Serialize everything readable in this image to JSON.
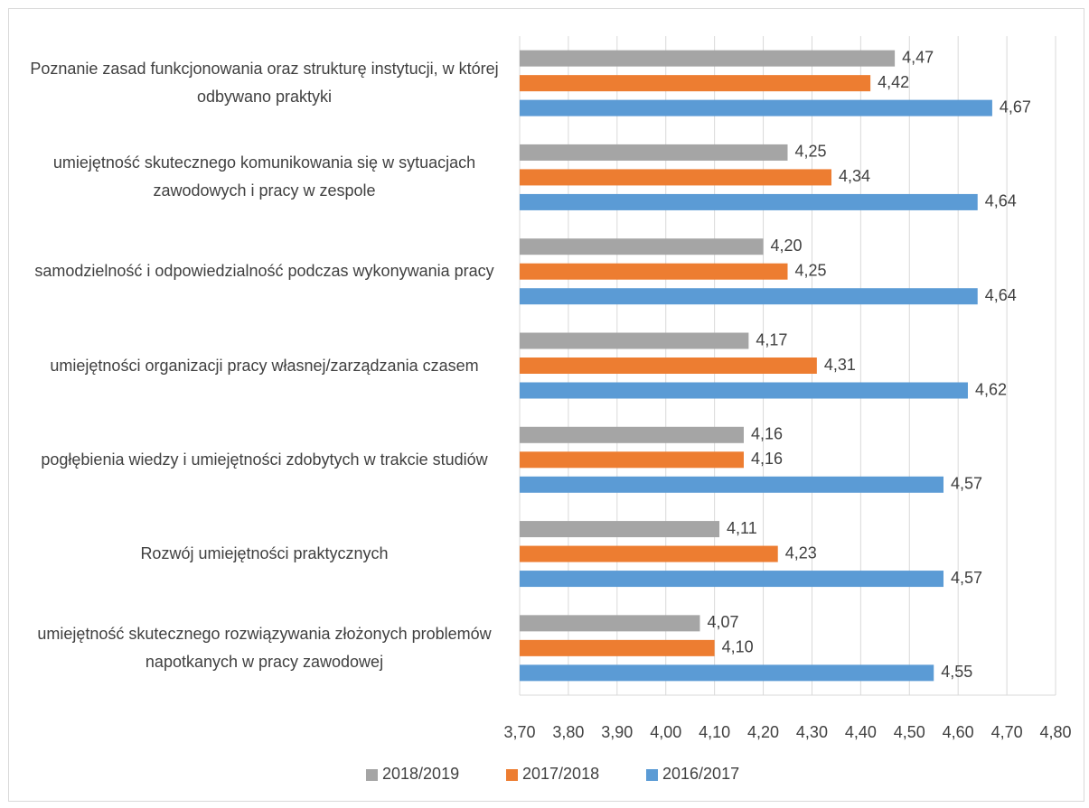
{
  "chart_data": {
    "type": "hbar",
    "categories": [
      "Poznanie  zasad funkcjonowania oraz strukturę instytucji, w której odbywano praktyki",
      "umiejętność skutecznego komunikowania się w sytuacjach zawodowych i pracy w zespole",
      "samodzielność i odpowiedzialność podczas wykonywania pracy",
      "umiejętności organizacji pracy własnej/zarządzania czasem",
      "pogłębienia wiedzy i umiejętności zdobytych w trakcie studiów",
      "Rozwój umiejętności praktycznych",
      "umiejętność skutecznego rozwiązywania złożonych problemów napotkanych w pracy zawodowej"
    ],
    "series": [
      {
        "name": "2018/2019",
        "color": "#a5a5a5",
        "values": [
          4.47,
          4.25,
          4.2,
          4.17,
          4.16,
          4.11,
          4.07
        ],
        "value_labels": [
          "4,47",
          "4,25",
          "4,20",
          "4,17",
          "4,16",
          "4,11",
          "4,07"
        ]
      },
      {
        "name": "2017/2018",
        "color": "#ed7d31",
        "values": [
          4.42,
          4.34,
          4.25,
          4.31,
          4.16,
          4.23,
          4.1
        ],
        "value_labels": [
          "4,42",
          "4,34",
          "4,25",
          "4,31",
          "4,16",
          "4,23",
          "4,10"
        ]
      },
      {
        "name": "2016/2017",
        "color": "#5b9bd5",
        "values": [
          4.67,
          4.64,
          4.64,
          4.62,
          4.57,
          4.57,
          4.55
        ],
        "value_labels": [
          "4,67",
          "4,64",
          "4,64",
          "4,62",
          "4,57",
          "4,57",
          "4,55"
        ]
      }
    ],
    "xlim": [
      3.7,
      4.8
    ],
    "xticks": [
      {
        "value": 3.7,
        "label": "3,70"
      },
      {
        "value": 3.8,
        "label": "3,80"
      },
      {
        "value": 3.9,
        "label": "3,90"
      },
      {
        "value": 4.0,
        "label": "4,00"
      },
      {
        "value": 4.1,
        "label": "4,10"
      },
      {
        "value": 4.2,
        "label": "4,20"
      },
      {
        "value": 4.3,
        "label": "4,30"
      },
      {
        "value": 4.4,
        "label": "4,40"
      },
      {
        "value": 4.5,
        "label": "4,50"
      },
      {
        "value": 4.6,
        "label": "4,60"
      },
      {
        "value": 4.7,
        "label": "4,70"
      },
      {
        "value": 4.8,
        "label": "4,80"
      }
    ],
    "grid": true,
    "legend": "bottom"
  }
}
